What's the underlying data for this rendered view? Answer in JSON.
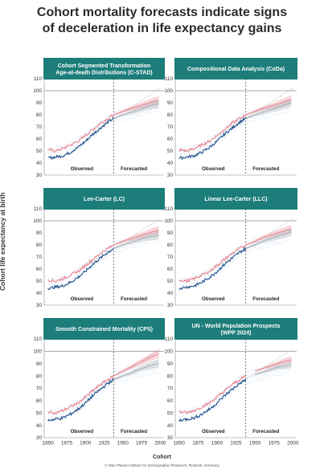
{
  "title": {
    "line1": "Cohort mortality forecasts indicate signs",
    "line2": "of deceleration in life expectancy gains"
  },
  "y_axis_label": "Cohort life expectancy at birth",
  "x_axis_label": "Cohort",
  "footer": "© Max Planck Institute for Demographic Research, Rostock, Germany",
  "colors": {
    "banner": "#1c7d7a",
    "observed_dark": "#1f4e8c",
    "observed_light": "#9fc4e8",
    "forecast_red": "#e8868f",
    "forecast_gray": "#a8b0b8",
    "trend_dashed": "#bbbbbb",
    "reference_line": "#555555"
  },
  "chart_data": [
    {
      "type": "line",
      "title_lines": [
        "Cohort Segmented Transformation",
        "Age-at-death Distributions (C-STAD)"
      ],
      "observed_label": "Observed",
      "forecast_label": "Forecasted",
      "x_range": [
        1845,
        2005
      ],
      "ylim": [
        30,
        110
      ],
      "y_ticks": [
        30,
        40,
        50,
        60,
        70,
        80,
        90,
        100,
        110
      ],
      "x_ticks": [
        1850,
        1875,
        1900,
        1925,
        1950,
        1975,
        2000
      ],
      "forecast_start": 1938,
      "reference_y": 100,
      "series": [
        {
          "role": "female-observed",
          "color": "#e8868f",
          "x": [
            1850,
            1860,
            1870,
            1880,
            1890,
            1900,
            1910,
            1920,
            1930,
            1938
          ],
          "y": [
            51,
            50,
            52,
            55,
            58,
            63,
            68,
            73,
            77,
            80
          ]
        },
        {
          "role": "female-forecast",
          "color": "#e8868f",
          "x": [
            1938,
            1950,
            1960,
            1970,
            1980,
            1990,
            1998
          ],
          "y": [
            80,
            83,
            85,
            87,
            89,
            91,
            92
          ]
        },
        {
          "role": "male-observed",
          "color": "#1f4e8c",
          "x": [
            1850,
            1860,
            1870,
            1880,
            1890,
            1900,
            1910,
            1920,
            1930,
            1938
          ],
          "y": [
            44,
            45,
            46,
            49,
            53,
            58,
            64,
            69,
            74,
            77
          ]
        },
        {
          "role": "male-forecast",
          "color": "#a8b0b8",
          "x": [
            1938,
            1950,
            1960,
            1970,
            1980,
            1990,
            1998
          ],
          "y": [
            77,
            80,
            82,
            84,
            86,
            88,
            89
          ]
        }
      ]
    },
    {
      "type": "line",
      "title_lines": [
        "Compositional Data Analysis (CoDa)"
      ],
      "observed_label": "Observed",
      "forecast_label": "Forecasted",
      "x_range": [
        1845,
        2005
      ],
      "ylim": [
        30,
        110
      ],
      "y_ticks": [
        30,
        40,
        50,
        60,
        70,
        80,
        90,
        100,
        110
      ],
      "x_ticks": [
        1850,
        1875,
        1900,
        1925,
        1950,
        1975,
        2000
      ],
      "forecast_start": 1938,
      "reference_y": 100,
      "series": [
        {
          "role": "female-observed",
          "color": "#e8868f",
          "x": [
            1850,
            1860,
            1870,
            1880,
            1890,
            1900,
            1910,
            1920,
            1930,
            1938
          ],
          "y": [
            51,
            50,
            52,
            55,
            58,
            63,
            68,
            73,
            77,
            80
          ]
        },
        {
          "role": "female-forecast",
          "color": "#e8868f",
          "x": [
            1938,
            1950,
            1960,
            1970,
            1980,
            1990,
            1998
          ],
          "y": [
            80,
            83,
            85,
            87,
            89,
            91,
            93
          ]
        },
        {
          "role": "male-observed",
          "color": "#1f4e8c",
          "x": [
            1850,
            1860,
            1870,
            1880,
            1890,
            1900,
            1910,
            1920,
            1930,
            1938
          ],
          "y": [
            44,
            45,
            46,
            49,
            53,
            58,
            64,
            69,
            74,
            77
          ]
        },
        {
          "role": "male-forecast",
          "color": "#a8b0b8",
          "x": [
            1938,
            1950,
            1960,
            1970,
            1980,
            1990,
            1998
          ],
          "y": [
            77,
            80,
            82,
            84,
            86,
            88,
            90
          ]
        }
      ]
    },
    {
      "type": "line",
      "title_lines": [
        "Lee-Carter (LC)"
      ],
      "observed_label": "Observed",
      "forecast_label": "Forecasted",
      "x_range": [
        1845,
        2005
      ],
      "ylim": [
        30,
        110
      ],
      "y_ticks": [
        30,
        40,
        50,
        60,
        70,
        80,
        90,
        100,
        110
      ],
      "x_ticks": [
        1850,
        1875,
        1900,
        1925,
        1950,
        1975,
        2000
      ],
      "forecast_start": 1938,
      "reference_y": 100,
      "series": [
        {
          "role": "female-observed",
          "color": "#e8868f",
          "x": [
            1850,
            1860,
            1870,
            1880,
            1890,
            1900,
            1910,
            1920,
            1930,
            1938
          ],
          "y": [
            51,
            50,
            52,
            55,
            58,
            63,
            68,
            73,
            77,
            80
          ]
        },
        {
          "role": "female-forecast",
          "color": "#e8868f",
          "x": [
            1938,
            1950,
            1960,
            1970,
            1980,
            1990,
            1998
          ],
          "y": [
            80,
            83,
            85,
            87,
            89,
            91,
            92
          ]
        },
        {
          "role": "male-observed",
          "color": "#1f4e8c",
          "x": [
            1850,
            1860,
            1870,
            1880,
            1890,
            1900,
            1910,
            1920,
            1930,
            1938
          ],
          "y": [
            44,
            45,
            46,
            49,
            53,
            58,
            64,
            69,
            74,
            77
          ]
        },
        {
          "role": "male-forecast",
          "color": "#a8b0b8",
          "x": [
            1938,
            1950,
            1960,
            1970,
            1980,
            1990,
            1998
          ],
          "y": [
            77,
            80,
            82,
            84,
            86,
            87,
            88
          ]
        }
      ]
    },
    {
      "type": "line",
      "title_lines": [
        "Linear Lee-Carter (LLC)"
      ],
      "observed_label": "Observed",
      "forecast_label": "Forecasted",
      "x_range": [
        1845,
        2005
      ],
      "ylim": [
        30,
        110
      ],
      "y_ticks": [
        30,
        40,
        50,
        60,
        70,
        80,
        90,
        100,
        110
      ],
      "x_ticks": [
        1850,
        1875,
        1900,
        1925,
        1950,
        1975,
        2000
      ],
      "forecast_start": 1938,
      "reference_y": 100,
      "series": [
        {
          "role": "female-observed",
          "color": "#e8868f",
          "x": [
            1850,
            1860,
            1870,
            1880,
            1890,
            1900,
            1910,
            1920,
            1930,
            1938
          ],
          "y": [
            51,
            50,
            52,
            55,
            58,
            63,
            68,
            73,
            77,
            80
          ]
        },
        {
          "role": "female-forecast",
          "color": "#e8868f",
          "x": [
            1938,
            1950,
            1960,
            1970,
            1980,
            1990,
            1998
          ],
          "y": [
            80,
            83,
            86,
            88,
            90,
            92,
            93
          ]
        },
        {
          "role": "male-observed",
          "color": "#1f4e8c",
          "x": [
            1850,
            1860,
            1870,
            1880,
            1890,
            1900,
            1910,
            1920,
            1930,
            1938
          ],
          "y": [
            44,
            45,
            46,
            49,
            53,
            58,
            64,
            69,
            74,
            77
          ]
        },
        {
          "role": "male-forecast",
          "color": "#a8b0b8",
          "x": [
            1938,
            1950,
            1960,
            1970,
            1980,
            1990,
            1998
          ],
          "y": [
            77,
            80,
            83,
            85,
            87,
            89,
            91
          ]
        }
      ]
    },
    {
      "type": "line",
      "title_lines": [
        "Smooth Constrained Mortality (CPS)"
      ],
      "observed_label": "Observed",
      "forecast_label": "Forecasted",
      "x_range": [
        1845,
        2005
      ],
      "ylim": [
        30,
        110
      ],
      "y_ticks": [
        30,
        40,
        50,
        60,
        70,
        80,
        90,
        100,
        110
      ],
      "x_ticks": [
        1850,
        1875,
        1900,
        1925,
        1950,
        1975,
        2000
      ],
      "forecast_start": 1938,
      "reference_y": 100,
      "series": [
        {
          "role": "female-observed",
          "color": "#e8868f",
          "x": [
            1850,
            1860,
            1870,
            1880,
            1890,
            1900,
            1910,
            1920,
            1930,
            1938
          ],
          "y": [
            51,
            50,
            52,
            55,
            58,
            63,
            68,
            73,
            77,
            80
          ]
        },
        {
          "role": "female-forecast",
          "color": "#e8868f",
          "x": [
            1938,
            1950,
            1960,
            1970,
            1980,
            1990,
            1998
          ],
          "y": [
            80,
            84,
            87,
            90,
            93,
            96,
            98
          ]
        },
        {
          "role": "male-observed",
          "color": "#1f4e8c",
          "x": [
            1850,
            1860,
            1870,
            1880,
            1890,
            1900,
            1910,
            1920,
            1930,
            1938
          ],
          "y": [
            44,
            45,
            46,
            49,
            53,
            58,
            64,
            69,
            74,
            77
          ]
        },
        {
          "role": "male-forecast",
          "color": "#a8b0b8",
          "x": [
            1938,
            1950,
            1960,
            1970,
            1980,
            1990,
            1998
          ],
          "y": [
            77,
            80,
            82,
            85,
            87,
            89,
            90
          ]
        }
      ]
    },
    {
      "type": "line",
      "title_lines": [
        "UN - World Population Prospects",
        "(WPP 2024)"
      ],
      "observed_label": "Observed",
      "forecast_label": "Forecasted",
      "x_range": [
        1845,
        2005
      ],
      "ylim": [
        30,
        110
      ],
      "y_ticks": [
        30,
        40,
        50,
        60,
        70,
        80,
        90,
        100,
        110
      ],
      "x_ticks": [
        1850,
        1875,
        1900,
        1925,
        1950,
        1975,
        2000
      ],
      "forecast_start": 1938,
      "reference_y": 100,
      "series": [
        {
          "role": "female-observed",
          "color": "#e8868f",
          "x": [
            1850,
            1860,
            1870,
            1880,
            1890,
            1900,
            1910,
            1920,
            1930,
            1938
          ],
          "y": [
            51,
            50,
            52,
            55,
            58,
            63,
            68,
            73,
            77,
            80
          ]
        },
        {
          "role": "female-forecast",
          "color": "#e8868f",
          "x": [
            1950,
            1960,
            1970,
            1980,
            1990,
            1998
          ],
          "y": [
            84,
            86,
            88,
            90,
            92,
            93
          ]
        },
        {
          "role": "male-observed",
          "color": "#1f4e8c",
          "x": [
            1850,
            1860,
            1870,
            1880,
            1890,
            1900,
            1910,
            1920,
            1930,
            1938
          ],
          "y": [
            44,
            45,
            46,
            49,
            53,
            58,
            64,
            69,
            74,
            77
          ]
        },
        {
          "role": "male-forecast",
          "color": "#a8b0b8",
          "x": [
            1950,
            1960,
            1970,
            1980,
            1990,
            1998
          ],
          "y": [
            81,
            83,
            85,
            87,
            88,
            89
          ]
        }
      ]
    }
  ]
}
